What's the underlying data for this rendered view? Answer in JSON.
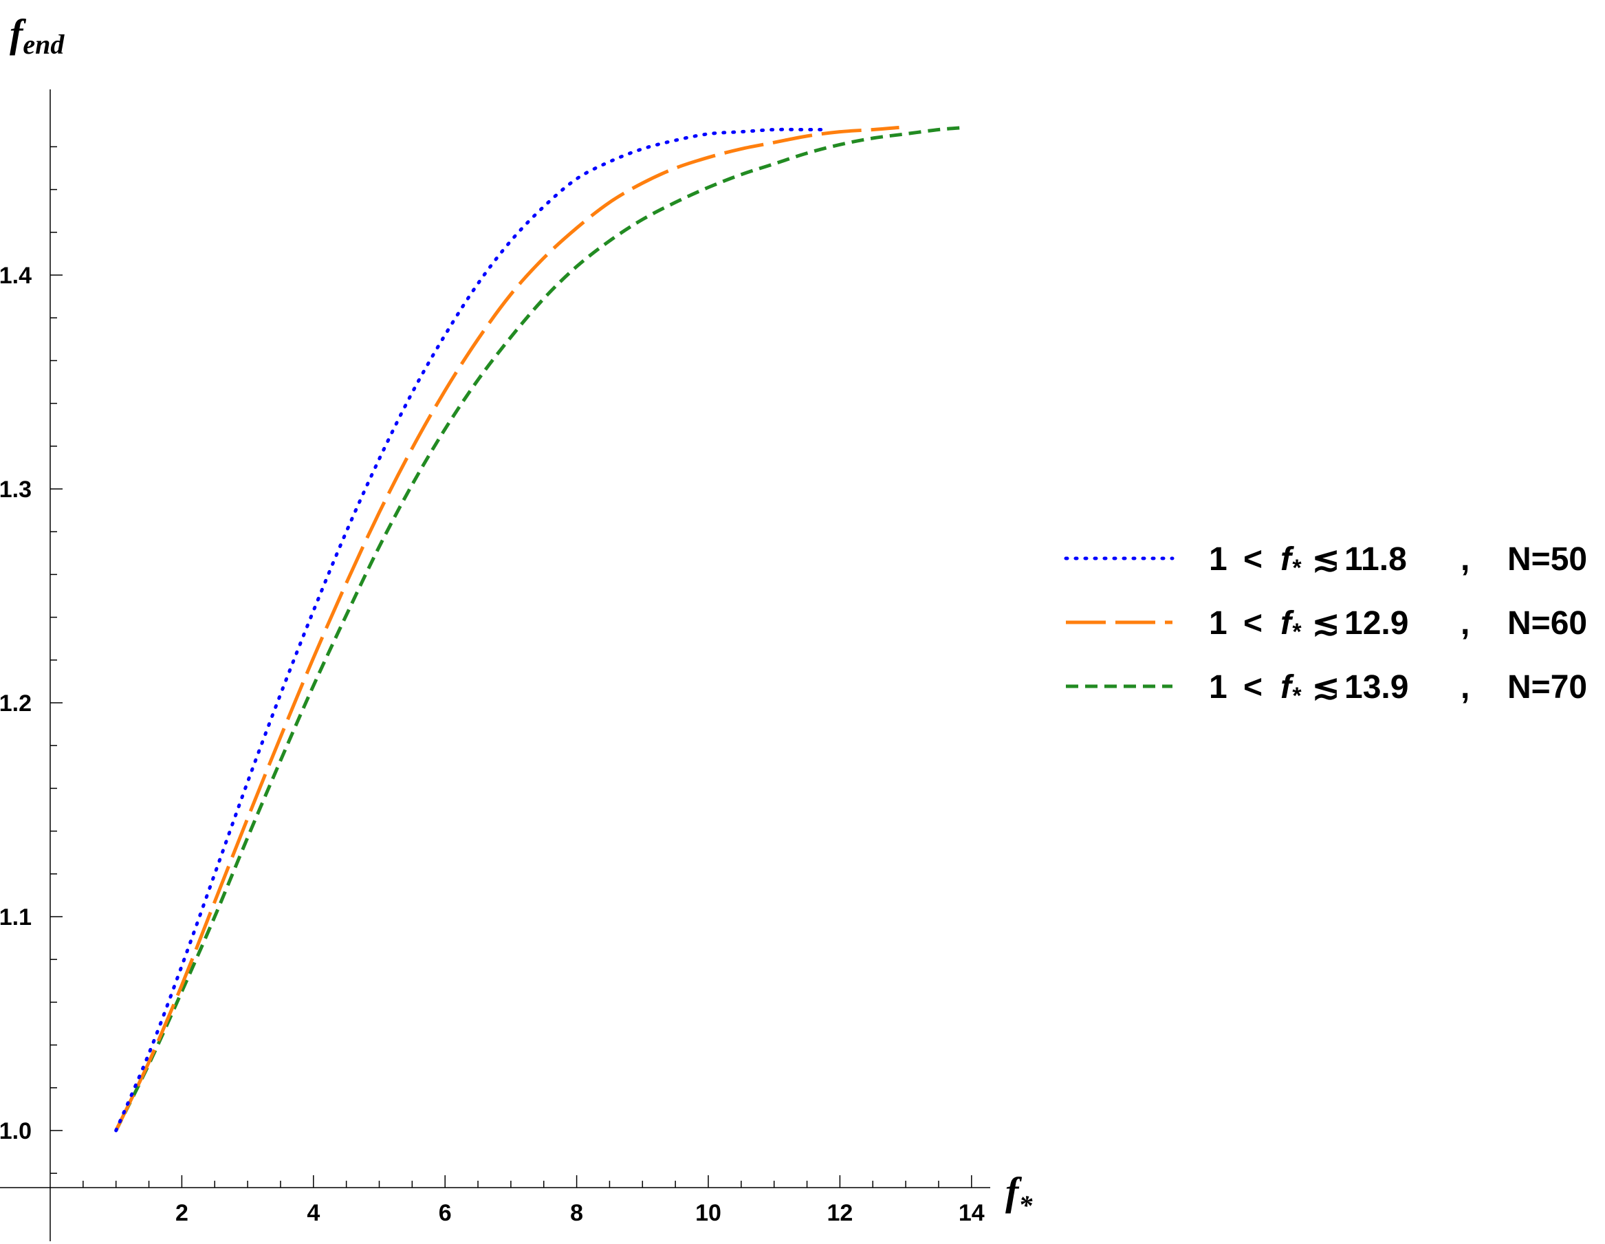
{
  "chart_data": {
    "type": "line",
    "xlabel": "f",
    "xlabel_sub": "*",
    "ylabel": "f",
    "ylabel_sub": "end",
    "xlim": [
      0,
      14.25
    ],
    "ylim": [
      0.9735,
      1.505
    ],
    "x_ticks": [
      2,
      4,
      6,
      8,
      10,
      12,
      14
    ],
    "y_ticks": [
      1.0,
      1.1,
      1.2,
      1.3,
      1.4
    ],
    "y_tick_labels": [
      "1.0",
      "1.1",
      "1.2",
      "1.3",
      "1.4"
    ],
    "grid": false,
    "legend_position": "right",
    "series": [
      {
        "name": "N=50",
        "legend": {
          "lower": "1",
          "lt": "<",
          "sym": "f",
          "sym_sub": "*",
          "rel": "≲",
          "upper": "11.8",
          "sep": ",",
          "tag": "N=50"
        },
        "color": "#0000ff",
        "style": "dotted",
        "x": [
          1.0,
          1.5,
          2.0,
          2.5,
          3.0,
          3.5,
          4.0,
          4.5,
          5.0,
          5.5,
          6.0,
          6.5,
          7.0,
          7.5,
          8.0,
          8.5,
          9.0,
          9.5,
          10.0,
          10.5,
          11.0,
          11.5,
          11.8
        ],
        "y": [
          1.0,
          1.036,
          1.077,
          1.12,
          1.163,
          1.204,
          1.243,
          1.28,
          1.314,
          1.345,
          1.372,
          1.396,
          1.416,
          1.432,
          1.445,
          1.453,
          1.459,
          1.463,
          1.466,
          1.467,
          1.468,
          1.468,
          1.468
        ]
      },
      {
        "name": "N=60",
        "legend": {
          "lower": "1",
          "lt": "<",
          "sym": "f",
          "sym_sub": "*",
          "rel": "≲",
          "upper": "12.9",
          "sep": ",",
          "tag": "N=60"
        },
        "color": "#ff7f0e",
        "style": "long-dash",
        "x": [
          1.0,
          1.5,
          2.0,
          2.5,
          3.0,
          3.5,
          4.0,
          4.5,
          5.0,
          5.5,
          6.0,
          6.5,
          7.0,
          7.5,
          8.0,
          8.5,
          9.0,
          9.5,
          10.0,
          10.5,
          11.0,
          11.5,
          12.0,
          12.5,
          12.9
        ],
        "y": [
          1.0,
          1.032,
          1.068,
          1.107,
          1.146,
          1.184,
          1.221,
          1.256,
          1.289,
          1.319,
          1.346,
          1.37,
          1.391,
          1.408,
          1.422,
          1.434,
          1.443,
          1.45,
          1.455,
          1.459,
          1.462,
          1.465,
          1.467,
          1.468,
          1.469
        ]
      },
      {
        "name": "N=70",
        "legend": {
          "lower": "1",
          "lt": "<",
          "sym": "f",
          "sym_sub": "*",
          "rel": "≲",
          "upper": "13.9",
          "sep": ",",
          "tag": "N=70"
        },
        "color": "#228b22",
        "style": "dashed",
        "x": [
          1.0,
          1.5,
          2.0,
          2.5,
          3.0,
          3.5,
          4.0,
          4.5,
          5.0,
          5.5,
          6.0,
          6.5,
          7.0,
          7.5,
          8.0,
          8.5,
          9.0,
          9.5,
          10.0,
          10.5,
          11.0,
          11.5,
          12.0,
          12.5,
          13.0,
          13.5,
          13.9
        ],
        "y": [
          1.0,
          1.031,
          1.065,
          1.1,
          1.137,
          1.173,
          1.208,
          1.241,
          1.273,
          1.302,
          1.328,
          1.351,
          1.371,
          1.389,
          1.404,
          1.416,
          1.426,
          1.434,
          1.441,
          1.447,
          1.452,
          1.457,
          1.461,
          1.464,
          1.466,
          1.468,
          1.469
        ]
      }
    ]
  }
}
